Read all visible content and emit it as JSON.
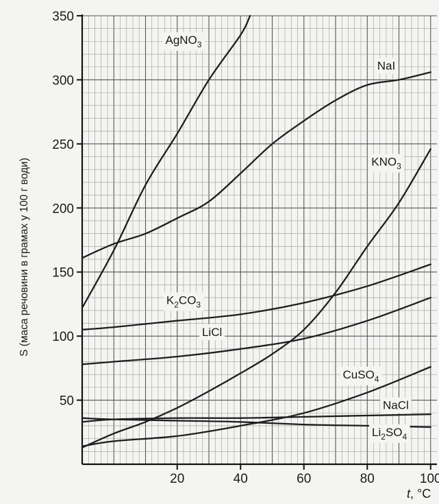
{
  "chart_data": {
    "type": "line",
    "xlabel_italic": "t",
    "xlabel_unit": ", °C",
    "ylabel": "S (маса речовини в грамах у 100 г води)",
    "xlim": [
      -10,
      102
    ],
    "ylim": [
      0,
      350
    ],
    "x_ticks": [
      20,
      40,
      60,
      80,
      100
    ],
    "y_ticks": [
      50,
      100,
      150,
      200,
      250,
      300,
      350
    ],
    "x_grid_step": 2,
    "y_grid_step": 10,
    "grid": true,
    "series": [
      {
        "name": "AgNO3",
        "label_parts": [
          [
            "AgNO",
            ""
          ],
          [
            "3",
            "sub"
          ]
        ],
        "x": [
          -10,
          0,
          10,
          20,
          30,
          40,
          43
        ],
        "y": [
          122,
          167,
          218,
          258,
          300,
          335,
          350
        ]
      },
      {
        "name": "NaI",
        "label_parts": [
          [
            "NaI",
            ""
          ]
        ],
        "x": [
          -10,
          0,
          10,
          20,
          30,
          40,
          50,
          60,
          70,
          80,
          90,
          100
        ],
        "y": [
          161,
          172,
          180,
          192,
          205,
          227,
          250,
          268,
          284,
          296,
          300,
          306
        ]
      },
      {
        "name": "KNO3",
        "label_parts": [
          [
            "KNO",
            ""
          ],
          [
            "3",
            "sub"
          ]
        ],
        "x": [
          -10,
          0,
          10,
          20,
          30,
          40,
          50,
          60,
          70,
          80,
          90,
          100
        ],
        "y": [
          13,
          24,
          33,
          44,
          57,
          71,
          86,
          105,
          134,
          170,
          204,
          246
        ]
      },
      {
        "name": "K2CO3",
        "label_parts": [
          [
            "K",
            ""
          ],
          [
            "2",
            "sub"
          ],
          [
            "CO",
            ""
          ],
          [
            "3",
            "sub"
          ]
        ],
        "x": [
          -10,
          0,
          20,
          40,
          60,
          80,
          100
        ],
        "y": [
          105,
          107,
          112,
          117,
          126,
          139,
          156
        ]
      },
      {
        "name": "LiCl",
        "label_parts": [
          [
            "LiCl",
            ""
          ]
        ],
        "x": [
          -10,
          0,
          20,
          40,
          60,
          80,
          100
        ],
        "y": [
          78,
          80,
          84,
          90,
          98,
          112,
          130
        ]
      },
      {
        "name": "CuSO4",
        "label_parts": [
          [
            "CuSO",
            ""
          ],
          [
            "4",
            "sub"
          ]
        ],
        "x": [
          -10,
          0,
          20,
          40,
          60,
          80,
          100
        ],
        "y": [
          14,
          18,
          22,
          30,
          40,
          56,
          76
        ]
      },
      {
        "name": "NaCl",
        "label_parts": [
          [
            "NaCl",
            ""
          ]
        ],
        "x": [
          -10,
          0,
          20,
          40,
          60,
          80,
          100
        ],
        "y": [
          33,
          35,
          36,
          36,
          37,
          38,
          39
        ]
      },
      {
        "name": "Li2SO4",
        "label_parts": [
          [
            "Li",
            ""
          ],
          [
            "2",
            "sub"
          ],
          [
            "SO",
            ""
          ],
          [
            "4",
            "sub"
          ]
        ],
        "x": [
          -10,
          0,
          20,
          40,
          60,
          80,
          100
        ],
        "y": [
          36,
          35,
          34,
          33,
          31,
          30,
          29
        ]
      }
    ],
    "labels": [
      {
        "series": "AgNO3",
        "x": 22,
        "y": 328
      },
      {
        "series": "NaI",
        "x": 86,
        "y": 308
      },
      {
        "series": "KNO3",
        "x": 86,
        "y": 233
      },
      {
        "series": "K2CO3",
        "x": 22,
        "y": 125
      },
      {
        "series": "LiCl",
        "x": 31,
        "y": 100
      },
      {
        "series": "CuSO4",
        "x": 78,
        "y": 67
      },
      {
        "series": "NaCl",
        "x": 89,
        "y": 43
      },
      {
        "series": "Li2SO4",
        "x": 87,
        "y": 22
      }
    ]
  }
}
